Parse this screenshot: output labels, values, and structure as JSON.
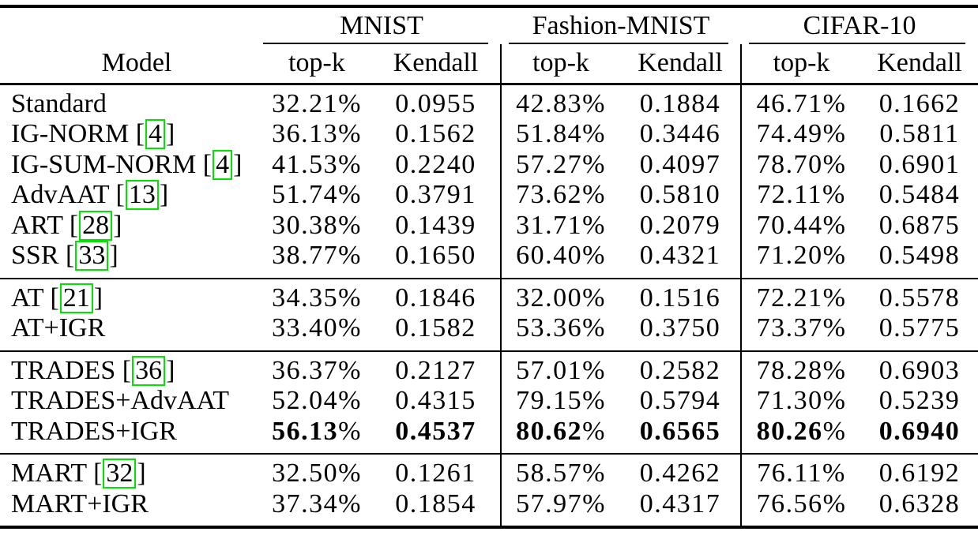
{
  "table": {
    "column_headers": {
      "model": "Model",
      "metrics": [
        "top-k",
        "Kendall"
      ]
    },
    "dataset_groups": [
      "MNIST",
      "Fashion-MNIST",
      "CIFAR-10"
    ],
    "sections": [
      {
        "rows": [
          {
            "model": "Standard",
            "cite": null,
            "bold": false,
            "values": [
              "32.21%",
              "0.0955",
              "42.83%",
              "0.1884",
              "46.71%",
              "0.1662"
            ]
          },
          {
            "model": "IG-NORM",
            "cite": "4",
            "bold": false,
            "values": [
              "36.13%",
              "0.1562",
              "51.84%",
              "0.3446",
              "74.49%",
              "0.5811"
            ]
          },
          {
            "model": "IG-SUM-NORM",
            "cite": "4",
            "bold": false,
            "values": [
              "41.53%",
              "0.2240",
              "57.27%",
              "0.4097",
              "78.70%",
              "0.6901"
            ]
          },
          {
            "model": "AdvAAT",
            "cite": "13",
            "bold": false,
            "values": [
              "51.74%",
              "0.3791",
              "73.62%",
              "0.5810",
              "72.11%",
              "0.5484"
            ]
          },
          {
            "model": "ART",
            "cite": "28",
            "bold": false,
            "values": [
              "30.38%",
              "0.1439",
              "31.71%",
              "0.2079",
              "70.44%",
              "0.6875"
            ]
          },
          {
            "model": "SSR",
            "cite": "33",
            "bold": false,
            "values": [
              "38.77%",
              "0.1650",
              "60.40%",
              "0.4321",
              "71.20%",
              "0.5498"
            ]
          }
        ]
      },
      {
        "rows": [
          {
            "model": "AT",
            "cite": "21",
            "bold": false,
            "values": [
              "34.35%",
              "0.1846",
              "32.00%",
              "0.1516",
              "72.21%",
              "0.5578"
            ]
          },
          {
            "model": "AT+IGR",
            "cite": null,
            "bold": false,
            "values": [
              "33.40%",
              "0.1582",
              "53.36%",
              "0.3750",
              "73.37%",
              "0.5775"
            ]
          }
        ]
      },
      {
        "rows": [
          {
            "model": "TRADES",
            "cite": "36",
            "bold": false,
            "values": [
              "36.37%",
              "0.2127",
              "57.01%",
              "0.2582",
              "78.28%",
              "0.6903"
            ]
          },
          {
            "model": "TRADES+AdvAAT",
            "cite": null,
            "bold": false,
            "values": [
              "52.04%",
              "0.4315",
              "79.15%",
              "0.5794",
              "71.30%",
              "0.5239"
            ]
          },
          {
            "model": "TRADES+IGR",
            "cite": null,
            "bold": true,
            "values": [
              "56.13%",
              "0.4537",
              "80.62%",
              "0.6565",
              "80.26%",
              "0.6940"
            ]
          }
        ]
      },
      {
        "rows": [
          {
            "model": "MART",
            "cite": "32",
            "bold": false,
            "values": [
              "32.50%",
              "0.1261",
              "58.57%",
              "0.4262",
              "76.11%",
              "0.6192"
            ]
          },
          {
            "model": "MART+IGR",
            "cite": null,
            "bold": false,
            "values": [
              "37.34%",
              "0.1854",
              "57.97%",
              "0.4317",
              "76.56%",
              "0.6328"
            ]
          }
        ]
      }
    ]
  },
  "colors": {
    "citation_box": "#00e400",
    "text": "#000000",
    "background": "#ffffff"
  }
}
